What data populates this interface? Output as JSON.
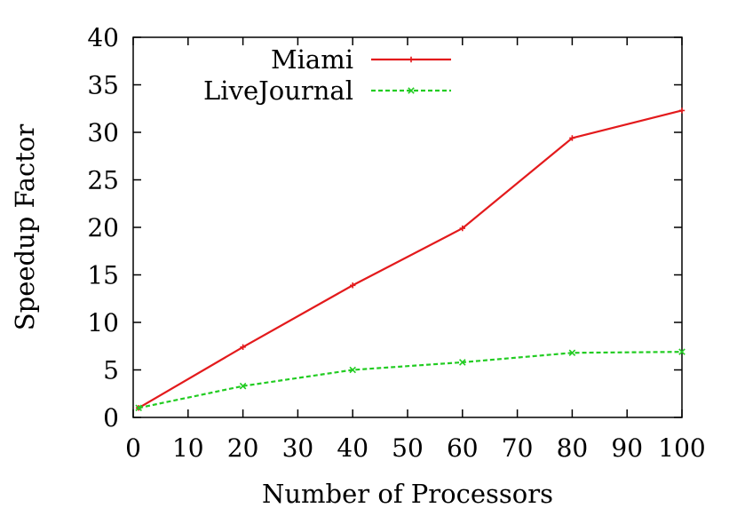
{
  "chart_data": {
    "type": "line",
    "xlabel": "Number of Processors",
    "ylabel": "Speedup Factor",
    "xlim": [
      0,
      100
    ],
    "ylim": [
      0,
      40
    ],
    "xticks": [
      0,
      10,
      20,
      30,
      40,
      50,
      60,
      70,
      80,
      90,
      100
    ],
    "yticks": [
      0,
      5,
      10,
      15,
      20,
      25,
      30,
      35,
      40
    ],
    "grid": false,
    "legend_position": "top-center",
    "series": [
      {
        "name": "Miami",
        "color": "#e31a1c",
        "line_style": "solid",
        "marker": "plus",
        "x": [
          1,
          20,
          40,
          60,
          80,
          100
        ],
        "y": [
          1.0,
          7.4,
          13.9,
          19.9,
          29.4,
          32.3
        ]
      },
      {
        "name": "LiveJournal",
        "color": "#22cc22",
        "line_style": "dashed",
        "marker": "cross",
        "x": [
          1,
          20,
          40,
          60,
          80,
          100
        ],
        "y": [
          1.0,
          3.3,
          5.0,
          5.8,
          6.8,
          6.9
        ]
      }
    ]
  }
}
